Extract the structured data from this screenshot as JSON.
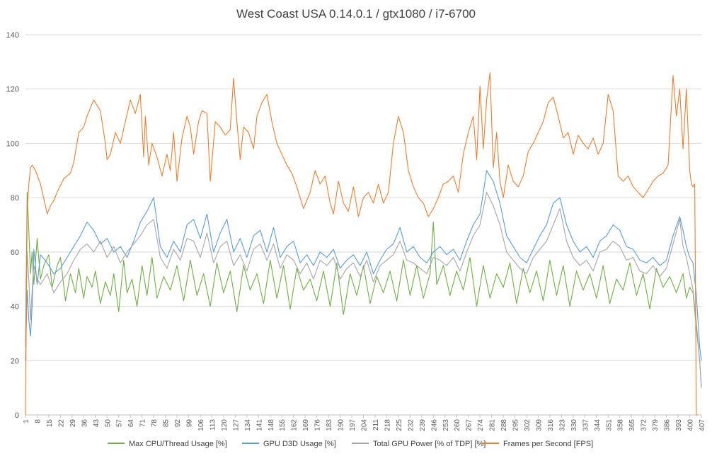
{
  "chart_data": {
    "type": "line",
    "title": "West Coast USA 0.14.0.1 / gtx1080 / i7-6700",
    "xlabel": "",
    "ylabel": "",
    "ylim": [
      0,
      140
    ],
    "yticks": [
      0,
      20,
      40,
      60,
      80,
      100,
      120,
      140
    ],
    "x_range": [
      1,
      407
    ],
    "xticks": [
      1,
      8,
      15,
      22,
      29,
      36,
      43,
      50,
      57,
      64,
      71,
      78,
      85,
      92,
      99,
      106,
      113,
      120,
      127,
      134,
      141,
      148,
      155,
      162,
      169,
      176,
      183,
      190,
      197,
      204,
      211,
      218,
      225,
      232,
      239,
      246,
      253,
      260,
      267,
      274,
      281,
      288,
      295,
      302,
      309,
      316,
      323,
      330,
      337,
      344,
      351,
      358,
      365,
      372,
      379,
      386,
      393,
      400,
      407
    ],
    "grid": "horizontal",
    "legend_position": "bottom",
    "series": [
      {
        "name": "Max CPU/Thread Usage [%]",
        "color": "#70ad47",
        "x": [
          1,
          2,
          3,
          4,
          5,
          6,
          8,
          10,
          12,
          15,
          17,
          20,
          22,
          25,
          28,
          31,
          33,
          36,
          38,
          41,
          43,
          46,
          49,
          52,
          54,
          57,
          60,
          62,
          65,
          68,
          71,
          74,
          77,
          80,
          84,
          88,
          92,
          96,
          100,
          104,
          108,
          112,
          116,
          120,
          124,
          128,
          132,
          136,
          140,
          144,
          148,
          152,
          156,
          160,
          164,
          168,
          172,
          176,
          180,
          184,
          188,
          192,
          196,
          200,
          204,
          208,
          212,
          216,
          220,
          224,
          228,
          232,
          236,
          240,
          244,
          246,
          248,
          252,
          256,
          260,
          264,
          268,
          272,
          276,
          280,
          284,
          288,
          292,
          296,
          300,
          304,
          308,
          312,
          316,
          320,
          324,
          328,
          332,
          336,
          340,
          344,
          348,
          352,
          356,
          360,
          364,
          368,
          372,
          376,
          380,
          384,
          388,
          392,
          396,
          398,
          400,
          402,
          404,
          406,
          407
        ],
        "values": [
          27,
          82,
          68,
          52,
          60,
          48,
          65,
          50,
          55,
          59,
          47,
          55,
          58,
          42,
          52,
          45,
          54,
          43,
          51,
          47,
          53,
          41,
          49,
          44,
          52,
          38,
          57,
          45,
          50,
          40,
          55,
          44,
          58,
          43,
          51,
          46,
          55,
          42,
          57,
          44,
          52,
          40,
          56,
          45,
          53,
          38,
          55,
          46,
          52,
          41,
          57,
          43,
          55,
          39,
          54,
          46,
          50,
          42,
          53,
          40,
          56,
          37,
          52,
          44,
          55,
          41,
          51,
          45,
          53,
          42,
          57,
          44,
          55,
          43,
          52,
          71,
          48,
          55,
          44,
          53,
          46,
          58,
          40,
          55,
          43,
          52,
          47,
          56,
          41,
          54,
          45,
          53,
          42,
          57,
          44,
          55,
          40,
          53,
          46,
          52,
          43,
          55,
          41,
          50,
          46,
          56,
          44,
          52,
          39,
          54,
          47,
          51,
          45,
          52,
          43,
          47,
          45,
          32,
          20,
          10
        ]
      },
      {
        "name": "GPU D3D Usage [%]",
        "color": "#5b9bd5",
        "x": [
          1,
          2,
          3,
          4,
          5,
          6,
          8,
          10,
          14,
          18,
          22,
          26,
          30,
          34,
          38,
          42,
          46,
          50,
          54,
          58,
          62,
          66,
          70,
          74,
          78,
          82,
          86,
          90,
          94,
          98,
          102,
          106,
          110,
          114,
          118,
          122,
          126,
          130,
          134,
          138,
          142,
          146,
          150,
          154,
          158,
          162,
          166,
          170,
          174,
          178,
          182,
          186,
          190,
          194,
          198,
          202,
          206,
          210,
          214,
          218,
          222,
          226,
          230,
          234,
          238,
          242,
          246,
          250,
          254,
          258,
          262,
          266,
          270,
          274,
          278,
          282,
          286,
          290,
          294,
          298,
          302,
          306,
          310,
          314,
          318,
          322,
          326,
          330,
          334,
          338,
          342,
          346,
          350,
          354,
          358,
          362,
          366,
          370,
          374,
          378,
          382,
          386,
          390,
          394,
          396,
          398,
          400,
          402,
          404,
          406,
          407
        ],
        "values": [
          20,
          46,
          35,
          29,
          40,
          61,
          48,
          59,
          56,
          52,
          54,
          58,
          62,
          66,
          71,
          68,
          63,
          65,
          60,
          62,
          58,
          64,
          71,
          75,
          80,
          62,
          58,
          64,
          60,
          70,
          72,
          65,
          74,
          60,
          67,
          72,
          60,
          65,
          58,
          66,
          68,
          60,
          69,
          58,
          62,
          64,
          56,
          59,
          55,
          60,
          58,
          61,
          54,
          57,
          59,
          55,
          60,
          52,
          57,
          61,
          63,
          69,
          60,
          62,
          58,
          56,
          60,
          62,
          59,
          61,
          57,
          64,
          70,
          74,
          90,
          86,
          78,
          66,
          62,
          58,
          56,
          61,
          66,
          70,
          78,
          80,
          70,
          64,
          60,
          62,
          58,
          64,
          66,
          70,
          68,
          62,
          61,
          57,
          56,
          58,
          55,
          57,
          66,
          73,
          68,
          62,
          58,
          56,
          44,
          25,
          20
        ]
      },
      {
        "name": "Total GPU Power [% of TDP] [%]",
        "color": "#a5a5a5",
        "x": [
          1,
          2,
          3,
          4,
          5,
          6,
          8,
          10,
          14,
          18,
          22,
          26,
          30,
          34,
          38,
          42,
          46,
          50,
          54,
          58,
          62,
          66,
          70,
          74,
          78,
          82,
          86,
          90,
          94,
          98,
          102,
          106,
          110,
          114,
          118,
          122,
          126,
          130,
          134,
          138,
          142,
          146,
          150,
          154,
          158,
          162,
          166,
          170,
          174,
          178,
          182,
          186,
          190,
          194,
          198,
          202,
          206,
          210,
          214,
          218,
          222,
          226,
          230,
          234,
          238,
          242,
          246,
          250,
          254,
          258,
          262,
          266,
          270,
          274,
          278,
          282,
          286,
          290,
          294,
          298,
          302,
          306,
          310,
          314,
          318,
          322,
          326,
          330,
          334,
          338,
          342,
          346,
          350,
          354,
          358,
          362,
          366,
          370,
          374,
          378,
          382,
          386,
          390,
          394,
          396,
          398,
          400,
          402,
          404,
          406,
          407
        ],
        "values": [
          25,
          60,
          50,
          35,
          46,
          55,
          50,
          48,
          52,
          45,
          49,
          52,
          57,
          61,
          63,
          60,
          64,
          58,
          62,
          56,
          60,
          63,
          66,
          70,
          72,
          58,
          54,
          61,
          57,
          65,
          64,
          58,
          67,
          56,
          62,
          64,
          55,
          59,
          53,
          61,
          63,
          57,
          63,
          54,
          59,
          57,
          52,
          56,
          50,
          57,
          55,
          58,
          50,
          54,
          56,
          51,
          57,
          49,
          55,
          57,
          59,
          64,
          57,
          56,
          54,
          52,
          58,
          57,
          55,
          58,
          53,
          60,
          66,
          70,
          82,
          77,
          70,
          60,
          57,
          54,
          52,
          58,
          61,
          64,
          70,
          76,
          64,
          58,
          55,
          57,
          53,
          60,
          61,
          64,
          62,
          57,
          58,
          53,
          52,
          55,
          51,
          54,
          63,
          72,
          62,
          58,
          52,
          46,
          34,
          20,
          10
        ]
      },
      {
        "name": "Frames per Second [FPS]",
        "color": "#ed7d31",
        "x": [
          1,
          2,
          3,
          4,
          5,
          7,
          10,
          13,
          14,
          16,
          18,
          20,
          24,
          28,
          30,
          33,
          36,
          38,
          42,
          46,
          49,
          50,
          52,
          55,
          58,
          61,
          64,
          67,
          70,
          72,
          73,
          75,
          77,
          80,
          83,
          86,
          88,
          90,
          92,
          95,
          98,
          100,
          102,
          105,
          107,
          110,
          112,
          115,
          118,
          121,
          124,
          126,
          128,
          130,
          132,
          135,
          138,
          140,
          143,
          146,
          149,
          152,
          155,
          158,
          161,
          164,
          168,
          172,
          175,
          178,
          181,
          184,
          186,
          189,
          192,
          195,
          198,
          201,
          204,
          207,
          210,
          213,
          216,
          219,
          222,
          225,
          228,
          231,
          234,
          237,
          240,
          243,
          246,
          249,
          252,
          255,
          258,
          261,
          264,
          267,
          270,
          272,
          274,
          276,
          278,
          280,
          282,
          284,
          286,
          288,
          291,
          294,
          297,
          300,
          303,
          306,
          309,
          312,
          315,
          318,
          321,
          324,
          327,
          330,
          333,
          336,
          339,
          342,
          345,
          348,
          351,
          354,
          357,
          360,
          363,
          366,
          369,
          372,
          375,
          378,
          381,
          384,
          387,
          390,
          392,
          394,
          396,
          398,
          400,
          401,
          402,
          403,
          404,
          405
        ],
        "values": [
          0,
          75,
          85,
          91,
          92,
          90,
          85,
          77,
          74,
          77,
          79,
          82,
          87,
          89,
          93,
          104,
          106,
          110,
          116,
          112,
          100,
          94,
          96,
          104,
          100,
          108,
          116,
          111,
          118,
          95,
          110,
          92,
          100,
          95,
          88,
          96,
          90,
          104,
          86,
          102,
          110,
          106,
          96,
          108,
          112,
          111,
          86,
          108,
          106,
          103,
          105,
          124,
          108,
          94,
          106,
          104,
          98,
          110,
          115,
          118,
          108,
          100,
          96,
          92,
          89,
          84,
          76,
          82,
          90,
          85,
          88,
          78,
          74,
          86,
          78,
          75,
          84,
          73,
          80,
          82,
          78,
          85,
          78,
          82,
          100,
          110,
          104,
          90,
          84,
          80,
          78,
          73,
          76,
          80,
          85,
          86,
          88,
          82,
          96,
          104,
          110,
          94,
          121,
          98,
          116,
          126,
          91,
          104,
          86,
          80,
          92,
          86,
          84,
          88,
          97,
          100,
          104,
          108,
          115,
          117,
          110,
          102,
          104,
          96,
          103,
          100,
          98,
          102,
          96,
          100,
          118,
          112,
          88,
          86,
          88,
          84,
          82,
          80,
          83,
          86,
          88,
          89,
          92,
          125,
          110,
          120,
          98,
          120,
          90,
          85,
          84,
          85,
          0,
          0
        ]
      }
    ]
  }
}
